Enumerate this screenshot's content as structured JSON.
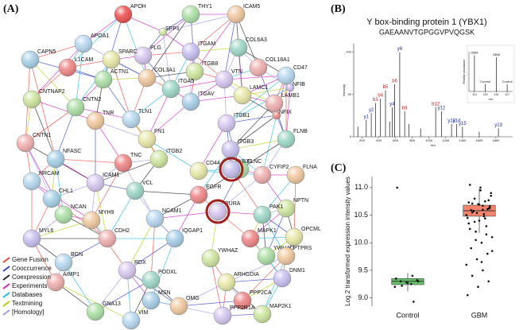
{
  "panels": {
    "a": "(A)",
    "b": "(B)",
    "c": "(C)"
  },
  "network": {
    "nodes": [
      "APOH",
      "SPP1",
      "THY1",
      "ICAM5",
      "APOA1",
      "PLG",
      "COL6A3",
      "SPARC",
      "ITGAM",
      "COL18A1",
      "CAPN5",
      "L1CAM",
      "ITGB8",
      "ACTN1",
      "COL3A1",
      "CD47",
      "VTN",
      "ITGA5",
      "LAMC1",
      "NFIB",
      "LAMB1",
      "ITGAV",
      "NFIX",
      "CNTNAP2",
      "CNTN2",
      "TNR",
      "TLN1",
      "ITGB1",
      "FLNB",
      "FN1",
      "ITGB3",
      "CNTN1",
      "NFASC",
      "TNC",
      "ITGB2",
      "FLNC",
      "FLNA",
      "NRCAM",
      "ICAM1",
      "VCL",
      "CD44",
      "YBX1",
      "CYFIP2",
      "CHL1",
      "EGFR",
      "NPTN",
      "NCAN",
      "MYH9",
      "NCAM1",
      "PURA",
      "PAK1",
      "OPCML",
      "MYL6",
      "CDH2",
      "IQGAP1",
      "MAPK1",
      "YWHAZ",
      "YWHAG",
      "PTPRS",
      "BGN",
      "RDX",
      "PODXL",
      "ARHGDIA",
      "DNM1",
      "AIMP1",
      "MSN",
      "PPP2CA",
      "MAP2K1",
      "GNA13",
      "OMG",
      "VIM",
      "PPP2R1A"
    ],
    "legend": [
      {
        "name": "Gene Fusion",
        "color": "#e8473c"
      },
      {
        "name": "Cooccurrence",
        "color": "#3040c0"
      },
      {
        "name": "Coexpression",
        "color": "#222222"
      },
      {
        "name": "Experiments",
        "color": "#d020c8"
      },
      {
        "name": "Databases",
        "color": "#20b8e0"
      },
      {
        "name": "Textmining",
        "color": "#b8cc10"
      },
      {
        "name": "[Homology]",
        "color": "#9a9aee"
      }
    ]
  },
  "chart_data": [
    {
      "type": "spectrum",
      "title": "Y box-binding protein 1 (YBX1)",
      "subtitle": "GAEAANVTGPGGVPVQGSK",
      "x_label": "m/z",
      "y_label": "Intensity",
      "x": [
        150,
        250,
        310,
        360,
        420,
        480,
        530,
        560,
        590,
        650,
        710,
        760,
        900,
        1080,
        1150,
        1270,
        1330,
        1400,
        1600,
        1830
      ],
      "values": [
        12,
        20,
        28,
        40,
        45,
        55,
        18,
        35,
        62,
        100,
        30,
        15,
        10,
        35,
        30,
        15,
        15,
        12,
        6,
        10
      ],
      "peak_labels": [
        null,
        "y1",
        "y2",
        "b3",
        "b4",
        "b5",
        null,
        "y4",
        "b6",
        "y6",
        "b8",
        null,
        null,
        "b12",
        "y12",
        "y13",
        "y14",
        "y15",
        null,
        "y19"
      ],
      "xlim": [
        100,
        2000
      ],
      "xticks": [
        200,
        400,
        600,
        800,
        1000,
        1200,
        1400,
        1600,
        1800
      ],
      "ylim": [
        0,
        110
      ],
      "yticks": [
        0,
        50,
        100
      ],
      "color": "#333333"
    },
    {
      "type": "inset",
      "x_label": "m/z",
      "y_label": "Relative abundance",
      "x": [
        114,
        115,
        116,
        117
      ],
      "values": [
        100,
        20,
        95,
        20
      ],
      "bar_labels": [
        "GBM",
        "Control",
        "GBM",
        "Control"
      ],
      "xlim": [
        113.5,
        117.5
      ],
      "xticks": [
        114,
        115,
        116,
        117
      ],
      "ylim": [
        0,
        110
      ],
      "color": "#333333"
    },
    {
      "type": "box",
      "y_label": "Log 2 transformed expression intensity values",
      "categories": [
        "Control",
        "GBM"
      ],
      "colors": [
        "#66c26a",
        "#f4836b"
      ],
      "boxes": [
        {
          "min": 9.12,
          "q1": 9.24,
          "median": 9.3,
          "q3": 9.35,
          "max": 9.45,
          "points": [
            9.2,
            9.25,
            9.3,
            9.32,
            9.28,
            9.35,
            9.4,
            9.22,
            9.3,
            9.27,
            11.0,
            8.93
          ]
        },
        {
          "min": 10.18,
          "q1": 10.48,
          "median": 10.58,
          "q3": 10.68,
          "max": 10.98,
          "points": [
            10.5,
            10.6,
            10.55,
            10.62,
            10.7,
            10.45,
            10.52,
            10.58,
            10.66,
            10.4,
            10.35,
            10.75,
            10.8,
            10.9,
            11.0,
            11.05,
            10.3,
            10.2,
            10.1,
            10.0,
            9.9,
            9.8,
            9.7,
            9.6,
            9.5,
            9.4,
            9.3,
            9.2,
            9.05,
            10.48,
            10.57,
            10.63,
            10.69,
            10.73,
            10.44,
            10.38,
            10.85,
            10.95,
            10.25,
            10.15,
            10.05,
            9.85,
            9.65,
            10.59,
            10.61,
            10.54,
            10.5,
            10.67,
            10.71,
            10.77
          ]
        }
      ],
      "ylim": [
        8.85,
        11.2
      ],
      "yticks": [
        {
          "value": 9,
          "label": "9.0"
        },
        {
          "value": 9.5,
          "label": "9.5"
        },
        {
          "value": 10,
          "label": "10.0"
        },
        {
          "value": 10.5,
          "label": "10.5"
        },
        {
          "value": 11,
          "label": "11.0"
        }
      ]
    }
  ]
}
